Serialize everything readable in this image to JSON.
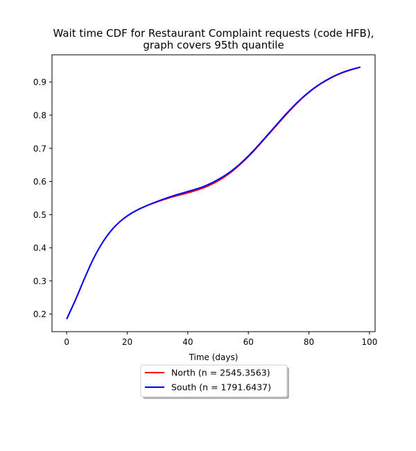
{
  "chart_data": {
    "type": "line",
    "title": [
      "Wait time CDF for Restaurant Complaint  requests (code HFB),",
      "graph covers 95th quantile"
    ],
    "xlabel": "Time (days)",
    "ylabel": "",
    "xlim": [
      -4.85,
      101.85
    ],
    "ylim": [
      0.147,
      0.982
    ],
    "xticks": [
      0,
      20,
      40,
      60,
      80,
      100
    ],
    "yticks": [
      0.2,
      0.3,
      0.4,
      0.5,
      0.6,
      0.7,
      0.8,
      0.9
    ],
    "grid": false,
    "legend_position": "below-center",
    "series": [
      {
        "name": "North (n = 2545.3563)",
        "color": "#ff0000",
        "x": [
          0,
          3,
          6,
          9,
          12,
          15,
          18,
          21,
          24,
          27,
          30,
          33,
          36,
          39,
          42,
          45,
          48,
          51,
          54,
          57,
          60,
          63,
          66,
          69,
          72,
          75,
          78,
          81,
          84,
          87,
          90,
          93,
          97
        ],
        "y": [
          0.185,
          0.245,
          0.31,
          0.37,
          0.418,
          0.455,
          0.482,
          0.502,
          0.517,
          0.529,
          0.539,
          0.548,
          0.556,
          0.563,
          0.571,
          0.58,
          0.592,
          0.607,
          0.626,
          0.649,
          0.675,
          0.704,
          0.735,
          0.766,
          0.797,
          0.826,
          0.853,
          0.876,
          0.895,
          0.911,
          0.924,
          0.934,
          0.945
        ]
      },
      {
        "name": "South (n = 1791.6437)",
        "color": "#0000ff",
        "x": [
          0,
          3,
          6,
          9,
          12,
          15,
          18,
          21,
          24,
          27,
          30,
          33,
          36,
          39,
          42,
          45,
          48,
          51,
          54,
          57,
          60,
          63,
          66,
          69,
          72,
          75,
          78,
          81,
          84,
          87,
          90,
          93,
          97
        ],
        "y": [
          0.185,
          0.245,
          0.31,
          0.37,
          0.418,
          0.455,
          0.482,
          0.502,
          0.517,
          0.529,
          0.54,
          0.55,
          0.559,
          0.567,
          0.575,
          0.584,
          0.596,
          0.611,
          0.629,
          0.651,
          0.677,
          0.706,
          0.737,
          0.768,
          0.799,
          0.828,
          0.854,
          0.877,
          0.896,
          0.912,
          0.925,
          0.935,
          0.945
        ]
      }
    ]
  }
}
